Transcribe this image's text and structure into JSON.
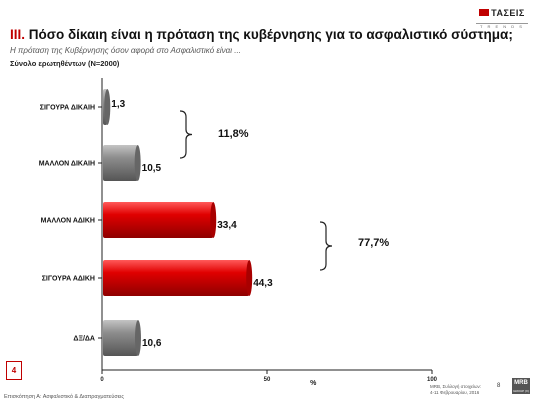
{
  "logo": {
    "name": "ΤΑΣΕΙΣ",
    "sub": "T R E N D S"
  },
  "header": {
    "title_num": "III.",
    "title_text": " Πόσο δίκαιη είναι η πρόταση της κυβέρνησης για το ασφαλιστικό σύστημα;",
    "subtitle": "Η πρόταση της Κυβέρνησης όσον αφορά στο Ασφαλιστικό είναι ...",
    "base": "Σύνολο ερωτηθέντων (Ν=2000)"
  },
  "chart_data": {
    "type": "bar",
    "orientation": "horizontal",
    "categories": [
      "ΣΙΓΟΥΡΑ ΔΙΚΑΙΗ",
      "ΜΑΛΛΟΝ ΔΙΚΑΙΗ",
      "ΜΑΛΛΟΝ ΑΔΙΚΗ",
      "ΣΙΓΟΥΡΑ ΑΔΙΚΗ",
      "ΔΞ/ΔΑ"
    ],
    "values": [
      1.3,
      10.5,
      33.4,
      44.3,
      10.6
    ],
    "value_labels": [
      "1,3",
      "10,5",
      "33,4",
      "44,3",
      "10,6"
    ],
    "bar_colors": [
      "#8a8a8a",
      "#8a8a8a",
      "#d40000",
      "#d40000",
      "#8a8a8a"
    ],
    "xlim": [
      0,
      100
    ],
    "xticks": [
      0,
      50,
      100
    ],
    "xlabel": "%",
    "groups": [
      {
        "label": "11,8%",
        "categories": [
          "ΣΙΓΟΥΡΑ ΔΙΚΑΙΗ",
          "ΜΑΛΛΟΝ ΔΙΚΑΙΗ"
        ]
      },
      {
        "label": "77,7%",
        "categories": [
          "ΜΑΛΛΟΝ ΑΔΙΚΗ",
          "ΣΙΓΟΥΡΑ ΑΔΙΚΗ"
        ]
      }
    ]
  },
  "footer": {
    "page_badge": "4",
    "section": "Επισκόπηση Α: Ασφαλιστικό & Διαπραγματεύσεις",
    "meta_line1": "MRB, Συλλογή στοιχείων:",
    "meta_line2": "4-11 Φεβρουαρίου, 2016",
    "page_num": "8",
    "brand": "MRB",
    "brand_sub": "GROUP (X)"
  }
}
